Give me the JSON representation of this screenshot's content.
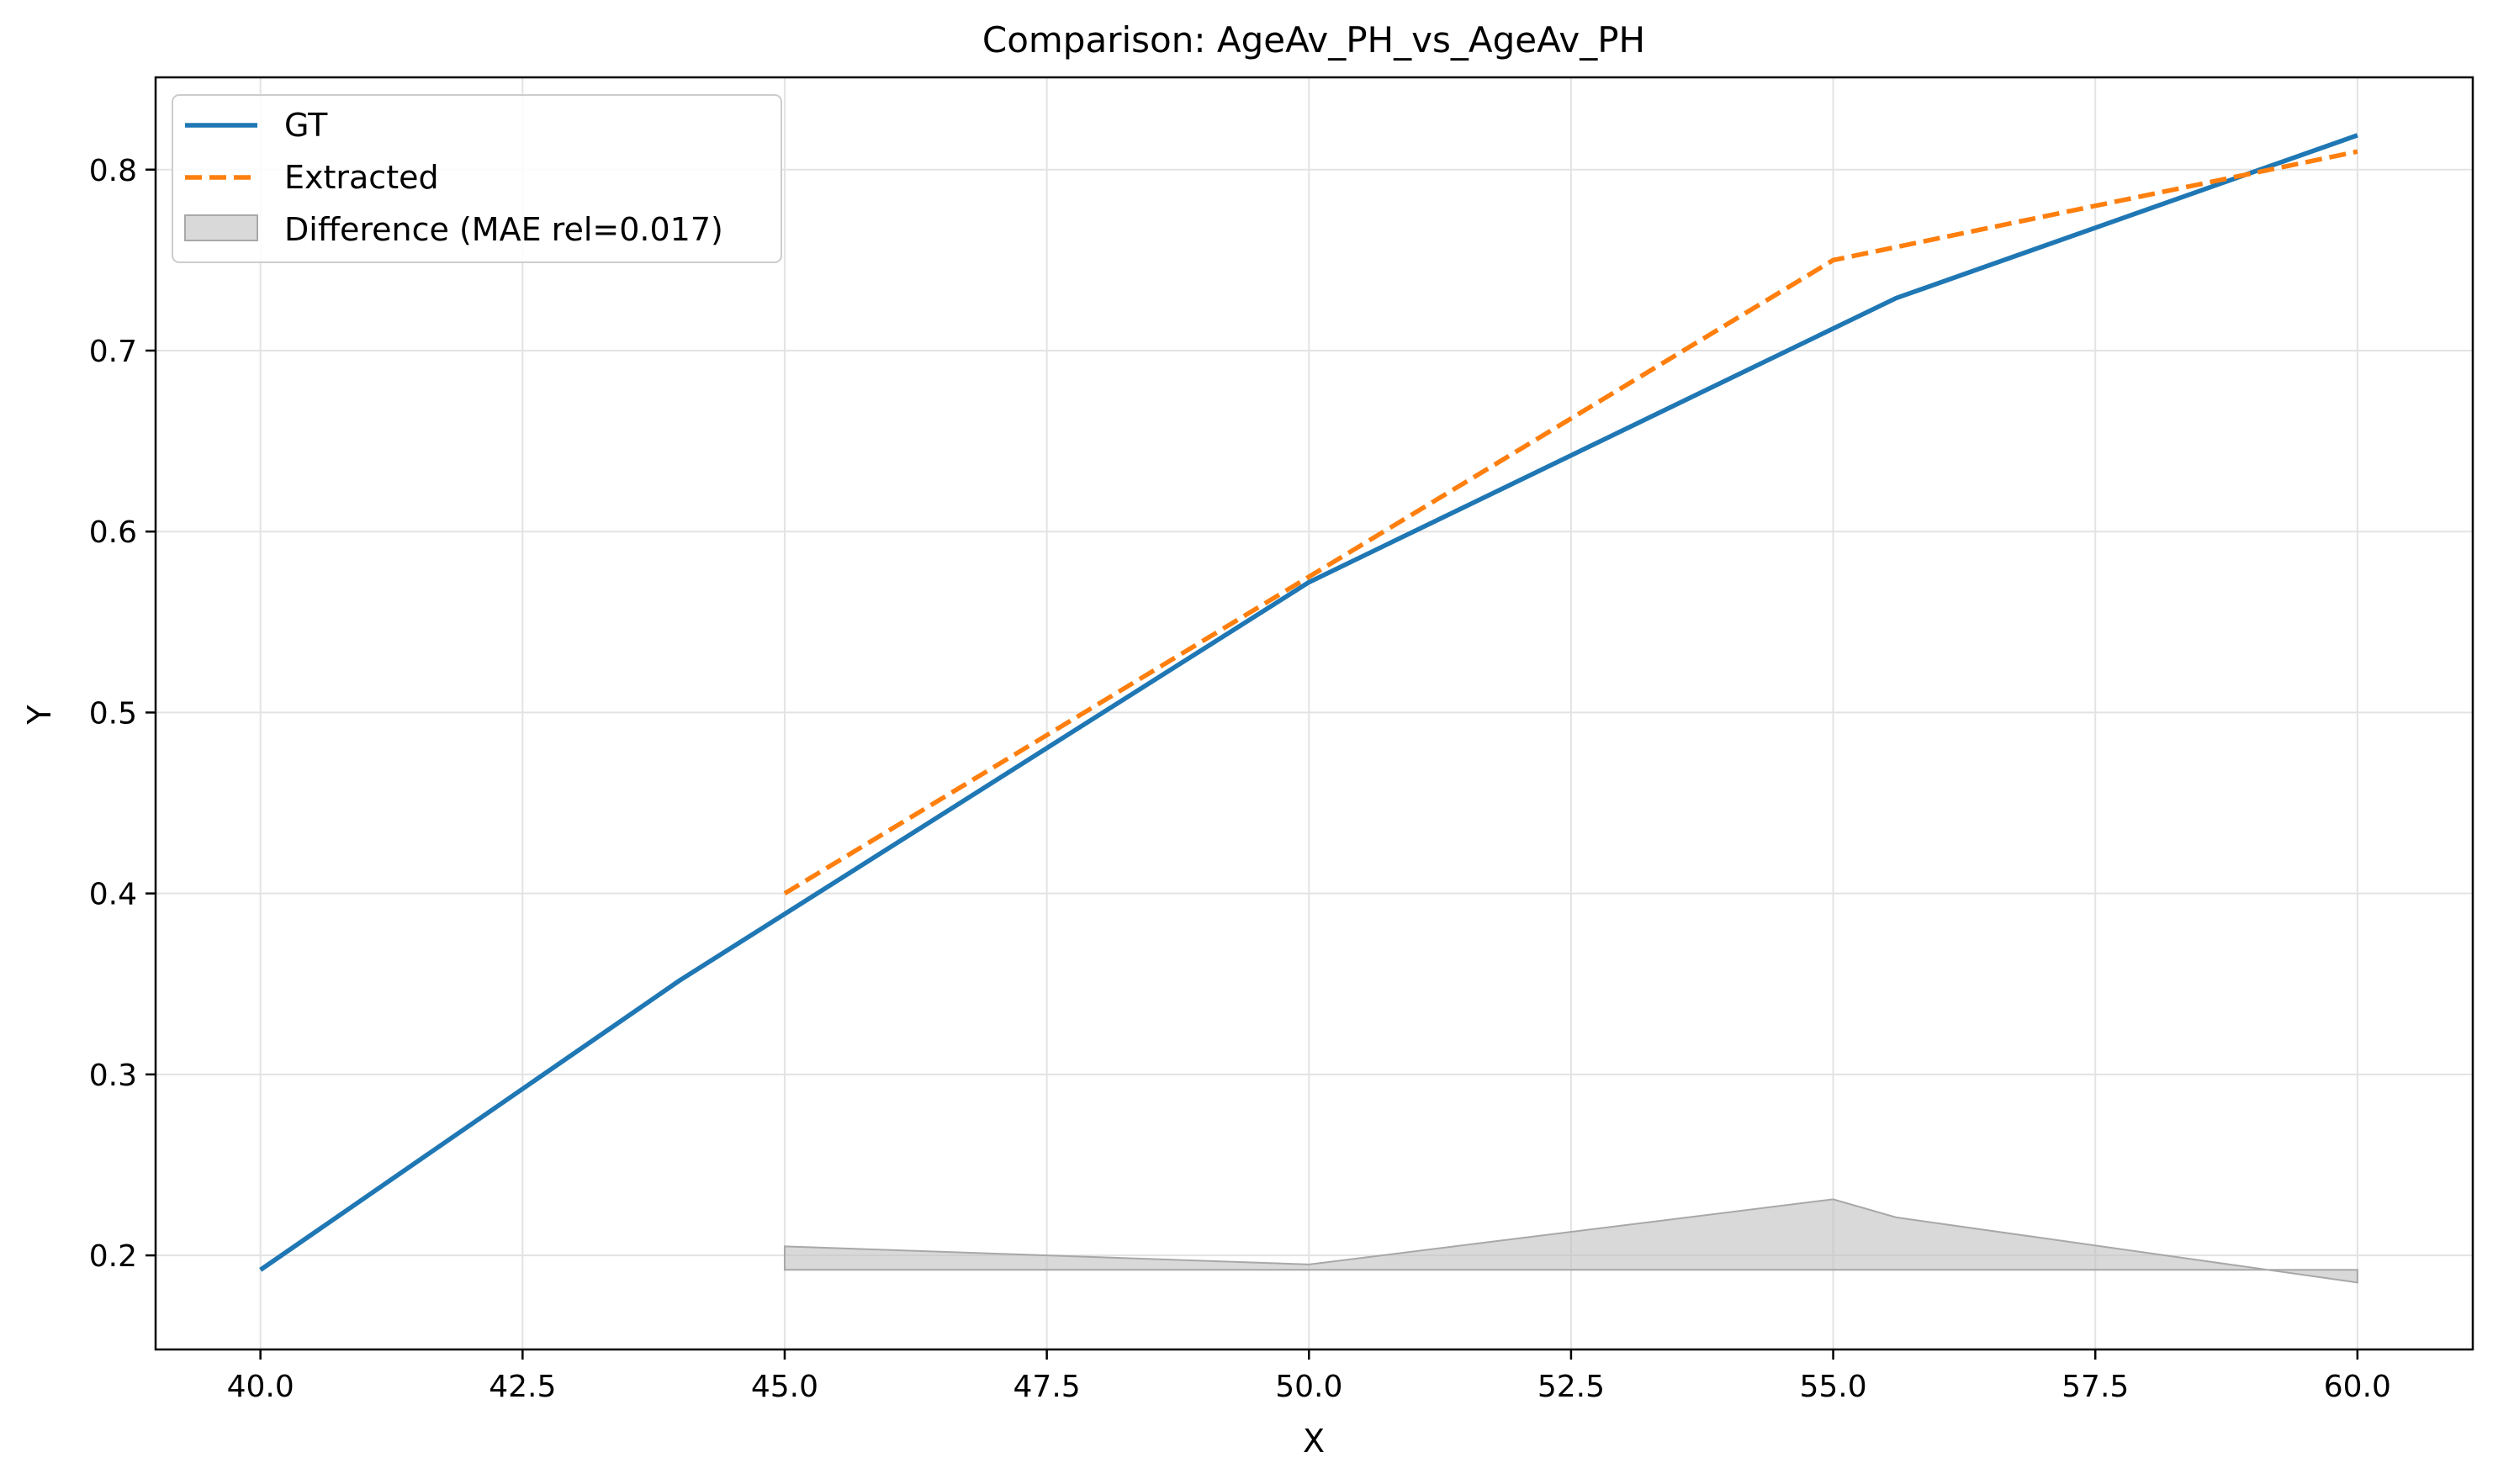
{
  "chart_data": {
    "type": "line",
    "title": "Comparison: AgeAv_PH_vs_AgeAv_PH",
    "xlabel": "X",
    "ylabel": "Y",
    "xlim": [
      39.0,
      61.1
    ],
    "ylim": [
      0.148,
      0.851
    ],
    "x_ticks": [
      40.0,
      42.5,
      45.0,
      47.5,
      50.0,
      52.5,
      55.0,
      57.5,
      60.0
    ],
    "x_tick_labels": [
      "40.0",
      "42.5",
      "45.0",
      "47.5",
      "50.0",
      "52.5",
      "55.0",
      "57.5",
      "60.0"
    ],
    "y_ticks": [
      0.2,
      0.3,
      0.4,
      0.5,
      0.6,
      0.7,
      0.8
    ],
    "y_tick_labels": [
      "0.2",
      "0.3",
      "0.4",
      "0.5",
      "0.6",
      "0.7",
      "0.8"
    ],
    "grid": true,
    "legend_position": "top-left",
    "series": [
      {
        "name": "GT",
        "color": "#1f77b4",
        "style": "solid",
        "x": [
          40.0,
          44.0,
          50.0,
          55.6,
          60.0
        ],
        "y": [
          0.192,
          0.352,
          0.572,
          0.729,
          0.819
        ]
      },
      {
        "name": "Extracted",
        "color": "#ff7f0e",
        "style": "dashed",
        "x": [
          45.0,
          50.0,
          55.0,
          60.0
        ],
        "y": [
          0.4,
          0.575,
          0.75,
          0.81
        ]
      }
    ],
    "difference": {
      "name": "Difference (MAE rel=0.017)",
      "color": "#bfbfbf",
      "baseline": 0.192,
      "x": [
        45.0,
        50.0,
        55.0,
        55.6,
        60.0
      ],
      "y": [
        0.205,
        0.195,
        0.231,
        0.221,
        0.185
      ]
    }
  }
}
